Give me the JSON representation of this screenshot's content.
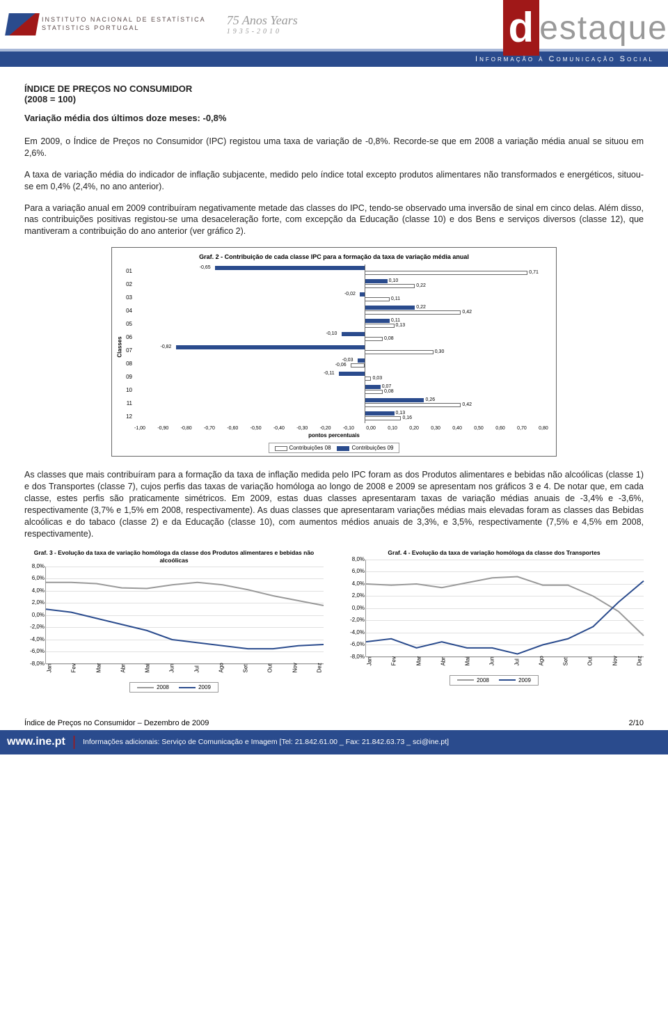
{
  "header": {
    "org_line1": "Instituto Nacional de Estatística",
    "org_line2": "Statistics Portugal",
    "anniversary_script": "75 Anos Years",
    "anniversary_years": "1935-2010",
    "brand_d": "d",
    "brand_rest": "estaque",
    "bar_text": "Informação à Comunicação Social"
  },
  "title": {
    "line1": "ÍNDICE DE PREÇOS NO CONSUMIDOR",
    "line2": "(2008 = 100)",
    "line3": "Variação média dos últimos doze meses: -0,8%"
  },
  "paragraphs": {
    "p1": "Em 2009, o Índice de Preços no Consumidor (IPC) registou uma taxa de variação de -0,8%. Recorde-se que em 2008 a variação média anual se situou em 2,6%.",
    "p2": "A taxa de variação média do indicador de inflação subjacente, medido pelo índice total excepto produtos alimentares não transformados e energéticos, situou-se em 0,4% (2,4%, no ano anterior).",
    "p3": "Para a variação anual em 2009 contribuíram negativamente metade das classes do IPC, tendo-se observado uma inversão de sinal em cinco delas. Além disso, nas contribuições positivas registou-se uma desaceleração forte, com excepção da Educação (classe 10) e dos Bens e serviços diversos (classe 12), que mantiveram a contribuição do ano anterior (ver gráfico 2).",
    "p4": "As classes que mais contribuíram para a formação da taxa de inflação medida pelo IPC foram as dos Produtos alimentares e bebidas não alcoólicas (classe 1) e dos Transportes (classe 7), cujos perfis das taxas de variação homóloga ao longo de 2008 e 2009 se apresentam nos gráficos 3 e 4. De notar que, em cada classe, estes perfis são praticamente simétricos. Em 2009, estas duas classes apresentaram taxas de variação médias anuais de -3,4% e -3,6%, respectivamente (3,7% e 1,5% em 2008, respectivamente). As duas classes que apresentaram variações médias mais elevadas foram as classes das Bebidas alcoólicas e do tabaco (classe 2) e da Educação (classe 10), com aumentos médios anuais de 3,3%, e 3,5%, respectivamente (7,5% e 4,5% em 2008, respectivamente)."
  },
  "chart2": {
    "title": "Graf. 2 - Contribuição de cada classe IPC para a formação da taxa de variação média anual",
    "yaxis_title": "Classes",
    "xaxis_title": "pontos percentuais",
    "legend08": "Contribuições 08",
    "legend09": "Contribuições 09",
    "xmin": -1.0,
    "xmax": 0.8,
    "xticks": [
      "-1,00",
      "-0,90",
      "-0,80",
      "-0,70",
      "-0,60",
      "-0,50",
      "-0,40",
      "-0,30",
      "-0,20",
      "-0,10",
      "0,00",
      "0,10",
      "0,20",
      "0,30",
      "0,40",
      "0,50",
      "0,60",
      "0,70",
      "0,80"
    ],
    "categories": [
      "01",
      "02",
      "03",
      "04",
      "05",
      "06",
      "07",
      "08",
      "09",
      "10",
      "11",
      "12"
    ],
    "series08": [
      0.71,
      0.22,
      0.11,
      0.42,
      0.13,
      0.08,
      0.3,
      -0.06,
      0.03,
      0.08,
      0.42,
      0.16
    ],
    "series09": [
      -0.65,
      0.1,
      -0.02,
      0.22,
      0.11,
      -0.1,
      -0.82,
      -0.03,
      -0.11,
      0.07,
      0.26,
      0.13
    ],
    "labels08": [
      "0,71",
      "0,22",
      "0,11",
      "0,42",
      "0,13",
      "0,08",
      "0,30",
      "-0,06",
      "0,03",
      "0,08",
      "0,42",
      "0,16"
    ],
    "labels09": [
      "-0,65",
      "0,10",
      "-0,02",
      "0,22",
      "0,11",
      "-0,10",
      "-0,82",
      "-0,03",
      "-0,11",
      "0,07",
      "0,26",
      "0,13"
    ],
    "color08_fill": "#ffffff",
    "color08_border": "#666666",
    "color09": "#2a4b8d",
    "background": "#ffffff"
  },
  "chart3": {
    "title": "Graf. 3 - Evolução da taxa de variação homóloga da classe dos Produtos alimentares e bebidas não alcoólicas",
    "yticks": [
      "8,0%",
      "6,0%",
      "4,0%",
      "2,0%",
      "0,0%",
      "-2,0%",
      "-4,0%",
      "-6,0%",
      "-8,0%"
    ],
    "months": [
      "Jan",
      "Fev",
      "Mar",
      "Abr",
      "Mai",
      "Jun",
      "Jul",
      "Ago",
      "Set",
      "Out",
      "Nov",
      "Dez"
    ],
    "legend1": "2008",
    "legend2": "2009",
    "ymin": -8,
    "ymax": 8,
    "series2008": [
      5.4,
      5.4,
      5.2,
      4.5,
      4.4,
      5.0,
      5.4,
      5.0,
      4.2,
      3.2,
      2.4,
      1.6
    ],
    "series2009": [
      1.0,
      0.5,
      -0.5,
      -1.5,
      -2.5,
      -4.0,
      -4.5,
      -5.0,
      -5.5,
      -5.5,
      -5.0,
      -4.8
    ],
    "color2008": "#999999",
    "color2009": "#2a4b8d"
  },
  "chart4": {
    "title": "Graf. 4 - Evolução da taxa de variação homóloga da classe dos Transportes",
    "yticks": [
      "8,0%",
      "6,0%",
      "4,0%",
      "2,0%",
      "0,0%",
      "-2,0%",
      "-4,0%",
      "-6,0%",
      "-8,0%"
    ],
    "months": [
      "Jan",
      "Fev",
      "Mar",
      "Abr",
      "Mai",
      "Jun",
      "Jul",
      "Ago",
      "Set",
      "Out",
      "Nov",
      "Dez"
    ],
    "legend1": "2008",
    "legend2": "2009",
    "ymin": -8,
    "ymax": 8,
    "series2008": [
      4.0,
      3.8,
      4.0,
      3.4,
      4.2,
      5.0,
      5.2,
      3.8,
      3.8,
      2.0,
      -0.5,
      -4.5
    ],
    "series2009": [
      -5.5,
      -5.0,
      -6.5,
      -5.5,
      -6.5,
      -6.5,
      -7.5,
      -6.0,
      -5.0,
      -3.0,
      1.0,
      4.5
    ],
    "color2008": "#999999",
    "color2009": "#2a4b8d"
  },
  "footer": {
    "left": "Índice de Preços no Consumidor – Dezembro de 2009",
    "right": "2/10",
    "www": "www.ine.pt",
    "info": "Informações adicionais: Serviço de Comunicação e Imagem [Tel: 21.842.61.00 _ Fax: 21.842.63.73 _ sci@ine.pt]"
  }
}
